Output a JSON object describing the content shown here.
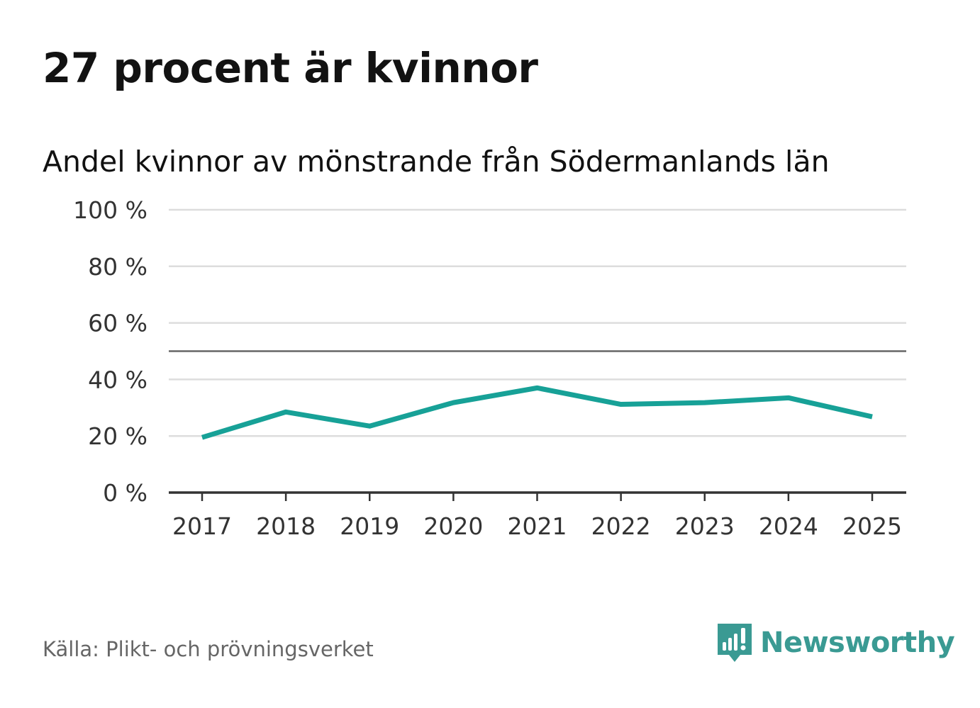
{
  "title": "27 procent är kvinnor",
  "subtitle": "Andel kvinnor av mönstrande från Södermanlands län",
  "source": "Källa: Plikt- och prövningsverket",
  "brand": {
    "name": "Newsworthy",
    "icon": "newsworthy-logo-icon",
    "color": "#3a9a93"
  },
  "colors": {
    "line": "#17a197",
    "grid": "#dddddd",
    "axis": "#333333",
    "reference": "#666666"
  },
  "chart_data": {
    "type": "line",
    "title": "Andel kvinnor av mönstrande från Södermanlands län",
    "xlabel": "",
    "ylabel": "",
    "categories": [
      "2017",
      "2018",
      "2019",
      "2020",
      "2021",
      "2022",
      "2023",
      "2024",
      "2025"
    ],
    "series": [
      {
        "name": "Andel kvinnor",
        "values": [
          19.5,
          28.5,
          23.5,
          31.8,
          37,
          31.2,
          31.8,
          33.5,
          26.8
        ]
      }
    ],
    "ylim": [
      0,
      100
    ],
    "yticks": [
      0,
      20,
      40,
      60,
      80,
      100
    ],
    "ytick_labels": [
      "0 %",
      "20 %",
      "40 %",
      "60 %",
      "80 %",
      "100 %"
    ],
    "reference_line": 50,
    "grid": true,
    "legend": "none"
  }
}
